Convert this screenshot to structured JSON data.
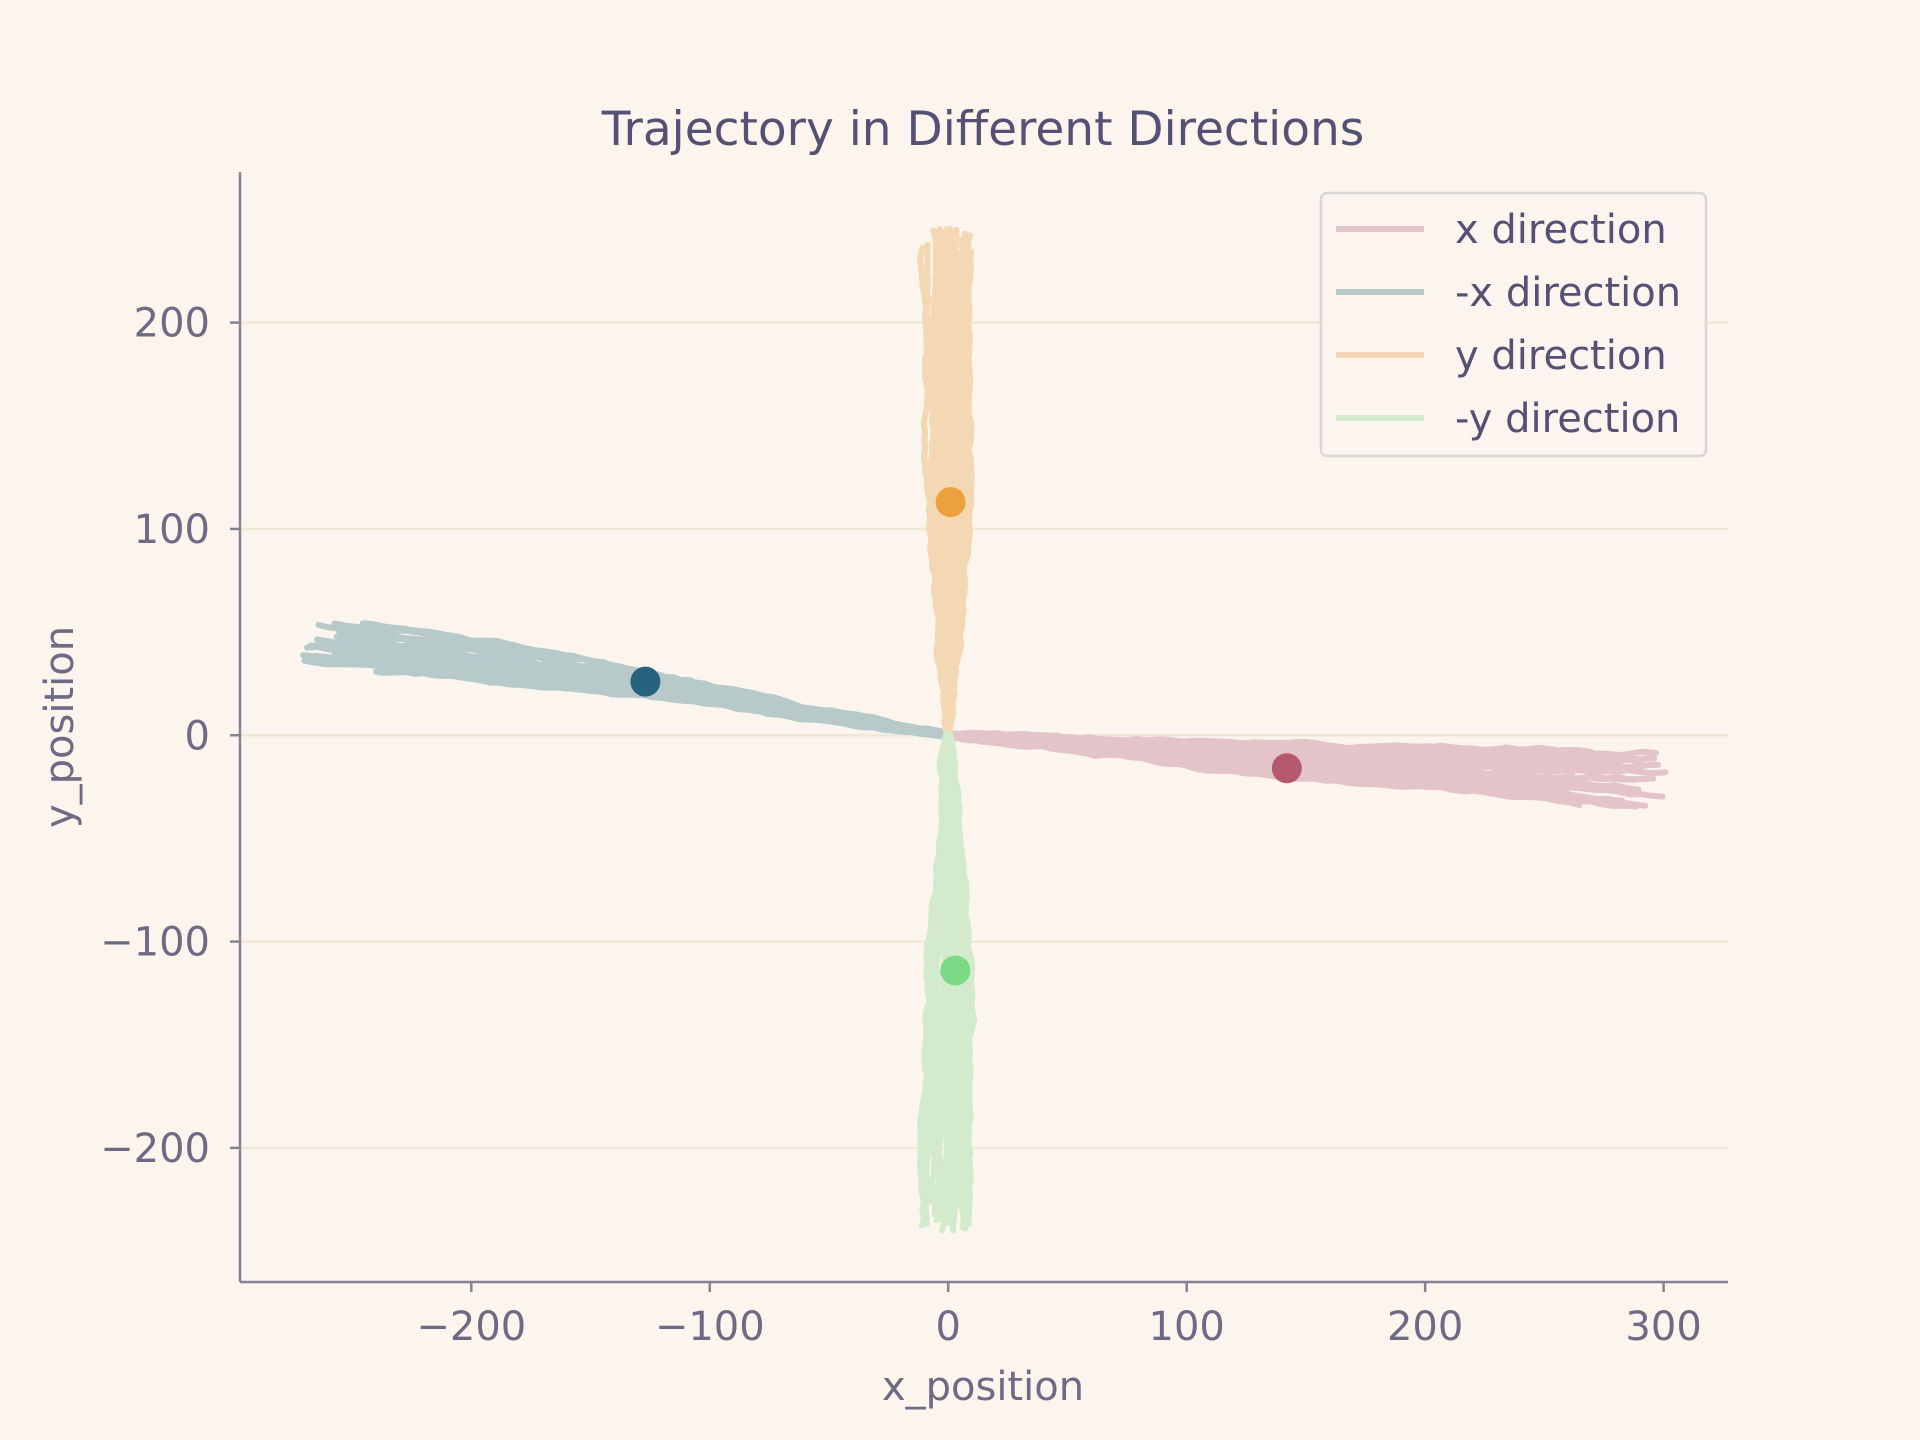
{
  "chart_data": {
    "type": "line",
    "title": "Trajectory in Different Directions",
    "xlabel": "x_position",
    "ylabel": "y_position",
    "xlim": [
      -297,
      327
    ],
    "ylim": [
      -265,
      273
    ],
    "xticks": [
      -200,
      -100,
      0,
      100,
      200,
      300
    ],
    "yticks": [
      -200,
      -100,
      0,
      100,
      200
    ],
    "xtick_labels": [
      "−200",
      "−100",
      "0",
      "100",
      "200",
      "300"
    ],
    "ytick_labels": [
      "−200",
      "−100",
      "0",
      "100",
      "200"
    ],
    "grid": "horizontal",
    "legend_position": "top-right",
    "series": [
      {
        "name": "x direction",
        "color": "#e3c4c8",
        "marker_color": "#b5596f",
        "mean_point": [
          142,
          -16
        ],
        "x": [
          0,
          30,
          60,
          90,
          120,
          150,
          180,
          210,
          240,
          270,
          300
        ],
        "y": [
          0,
          -2,
          -5,
          -8,
          -11,
          -13,
          -15,
          -17,
          -19,
          -21,
          -22
        ],
        "spread_x": 8,
        "spread_y": 14,
        "end_x": [
          298,
          288,
          272,
          290,
          265,
          296,
          282,
          248,
          300,
          275,
          260,
          292,
          285,
          270,
          240,
          295,
          287,
          262,
          255,
          290,
          89,
          140,
          230,
          288,
          299,
          280,
          270,
          265,
          290,
          296
        ]
      },
      {
        "name": "-x direction",
        "color": "#b8c9ca",
        "marker_color": "#26637e",
        "mean_point": [
          -127,
          26
        ],
        "x": [
          0,
          -30,
          -60,
          -90,
          -120,
          -150,
          -180,
          -210,
          -240,
          -270
        ],
        "y": [
          0,
          6,
          12,
          18,
          24,
          29,
          34,
          39,
          43,
          46
        ],
        "spread_x": 6,
        "spread_y": 12,
        "end_x": [
          -270,
          -255,
          -262,
          -248,
          -268,
          -240,
          -258,
          -265,
          -230,
          -250,
          -270,
          -245,
          -260,
          -252,
          -238,
          -266,
          -242,
          -256,
          -220,
          -200,
          -268,
          -235,
          -261,
          -249,
          -257,
          -244,
          -269,
          -253,
          -210,
          -264
        ]
      },
      {
        "name": "y direction",
        "color": "#f4d8b4",
        "marker_color": "#eba23c",
        "mean_point": [
          1,
          113
        ],
        "x": [
          0,
          0,
          0,
          0,
          0,
          0,
          0,
          0,
          0
        ],
        "y": [
          0,
          30,
          60,
          90,
          120,
          150,
          180,
          210,
          245
        ],
        "spread_x": 9,
        "spread_y": 5,
        "end_y": [
          245,
          240,
          232,
          248,
          236,
          243,
          228,
          246,
          238,
          233,
          249,
          241,
          230,
          244,
          237,
          247,
          226,
          239,
          245,
          235,
          242,
          231,
          248,
          240,
          234,
          246,
          229,
          243,
          238,
          244
        ]
      },
      {
        "name": "-y direction",
        "color": "#d3ebcc",
        "marker_color": "#7cd985",
        "mean_point": [
          3,
          -114
        ],
        "x": [
          0,
          0,
          0,
          0,
          0,
          0,
          0,
          0,
          0
        ],
        "y": [
          0,
          -30,
          -60,
          -90,
          -120,
          -150,
          -180,
          -210,
          -240
        ],
        "spread_x": 10,
        "spread_y": 5,
        "end_y": [
          -240,
          -232,
          -236,
          -228,
          -238,
          -226,
          -234,
          -222,
          -239,
          -231,
          -237,
          -225,
          -233,
          -240,
          -229,
          -235,
          -221,
          -238,
          -230,
          -236,
          -224,
          -239,
          -232,
          -227,
          -237,
          -234,
          -240,
          -228,
          -233,
          -236
        ]
      }
    ]
  }
}
